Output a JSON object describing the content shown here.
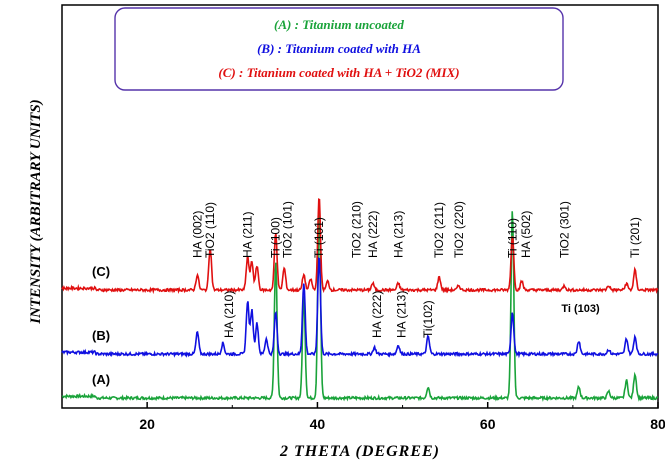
{
  "chart_data": {
    "type": "line",
    "xlabel": "2 THETA (DEGREE)",
    "ylabel": "INTENSITY (ARBITRARY UNITS)",
    "xlim": [
      10,
      80
    ],
    "xticks": [
      20,
      40,
      60,
      80
    ],
    "grid": false,
    "legend": {
      "placement": "top-center",
      "entries": [
        {
          "label": "(A) : Titanium uncoated",
          "color": "#1aa33a"
        },
        {
          "label": "(B) : Titanium coated with HA",
          "color": "#1010e0"
        },
        {
          "label": "(C) : Titanium coated with HA + TiO2 (MIX)",
          "color": "#e01010"
        }
      ]
    },
    "series": [
      {
        "name": "(A)",
        "tag": "(A)",
        "color": "#1aa33a",
        "baseline": 0.0,
        "peaks": [
          [
            35.1,
            0.62
          ],
          [
            38.4,
            0.46
          ],
          [
            40.2,
            0.87
          ],
          [
            53.0,
            0.05
          ],
          [
            62.9,
            0.85
          ],
          [
            70.7,
            0.05
          ],
          [
            74.2,
            0.03
          ],
          [
            76.3,
            0.08
          ],
          [
            77.3,
            0.11
          ]
        ]
      },
      {
        "name": "(B)",
        "tag": "(B)",
        "color": "#1010e0",
        "baseline": 0.18,
        "peaks": [
          [
            25.9,
            0.1
          ],
          [
            28.9,
            0.05
          ],
          [
            31.8,
            0.24
          ],
          [
            32.3,
            0.2
          ],
          [
            32.9,
            0.14
          ],
          [
            34.0,
            0.07
          ],
          [
            35.1,
            0.19
          ],
          [
            38.4,
            0.32
          ],
          [
            40.2,
            0.45
          ],
          [
            46.7,
            0.03
          ],
          [
            49.5,
            0.04
          ],
          [
            53.0,
            0.08
          ],
          [
            62.9,
            0.19
          ],
          [
            70.7,
            0.06
          ],
          [
            74.2,
            0.02
          ],
          [
            76.3,
            0.07
          ],
          [
            77.3,
            0.08
          ]
        ]
      },
      {
        "name": "(C)",
        "tag": "(C)",
        "color": "#e01010",
        "baseline": 0.43,
        "peaks": [
          [
            25.9,
            0.07
          ],
          [
            27.4,
            0.19
          ],
          [
            31.8,
            0.15
          ],
          [
            32.3,
            0.13
          ],
          [
            32.9,
            0.11
          ],
          [
            35.1,
            0.26
          ],
          [
            36.1,
            0.1
          ],
          [
            38.4,
            0.07
          ],
          [
            39.2,
            0.05
          ],
          [
            40.2,
            0.42
          ],
          [
            41.2,
            0.04
          ],
          [
            46.5,
            0.03
          ],
          [
            49.5,
            0.03
          ],
          [
            54.3,
            0.06
          ],
          [
            56.6,
            0.02
          ],
          [
            62.9,
            0.25
          ],
          [
            64.0,
            0.04
          ],
          [
            69.0,
            0.02
          ],
          [
            74.2,
            0.02
          ],
          [
            76.3,
            0.03
          ],
          [
            77.3,
            0.09
          ]
        ]
      }
    ],
    "annotations": [
      {
        "text": "HA (002)",
        "x": 25.9,
        "series": "C",
        "rot": true
      },
      {
        "text": "TiO2 (110)",
        "x": 27.4,
        "series": "C",
        "rot": true
      },
      {
        "text": "HA (211)",
        "x": 31.8,
        "series": "C",
        "rot": true
      },
      {
        "text": "Ti (100)",
        "x": 35.1,
        "series": "C",
        "rot": true
      },
      {
        "text": "TiO2 (101)",
        "x": 36.5,
        "series": "C",
        "rot": true
      },
      {
        "text": "Ti (101)",
        "x": 40.2,
        "series": "C",
        "rot": true
      },
      {
        "text": "TiO2 (210)",
        "x": 44.6,
        "series": "C",
        "rot": true
      },
      {
        "text": "HA (222)",
        "x": 46.5,
        "series": "C",
        "rot": true
      },
      {
        "text": "HA (213)",
        "x": 49.5,
        "series": "C",
        "rot": true
      },
      {
        "text": "TiO2 (211)",
        "x": 54.3,
        "series": "C",
        "rot": true
      },
      {
        "text": "TiO2 (220)",
        "x": 56.6,
        "series": "C",
        "rot": true
      },
      {
        "text": "Ti (110)",
        "x": 62.9,
        "series": "C",
        "rot": true
      },
      {
        "text": "HA (502)",
        "x": 64.5,
        "series": "C",
        "rot": true
      },
      {
        "text": "TiO2 (301)",
        "x": 69.0,
        "series": "C",
        "rot": true
      },
      {
        "text": "Ti (201)",
        "x": 77.3,
        "series": "C",
        "rot": true
      },
      {
        "text": "HA (210)",
        "x": 29.6,
        "series": "B",
        "rot": true
      },
      {
        "text": "HA (222)",
        "x": 47.0,
        "series": "B",
        "rot": true
      },
      {
        "text": "HA (213)",
        "x": 49.9,
        "series": "B",
        "rot": true
      },
      {
        "text": "Ti(102)",
        "x": 53.0,
        "series": "B",
        "rot": true
      },
      {
        "text": "Ti (103)",
        "x": 71.0,
        "series": "B",
        "rot": false
      }
    ]
  }
}
